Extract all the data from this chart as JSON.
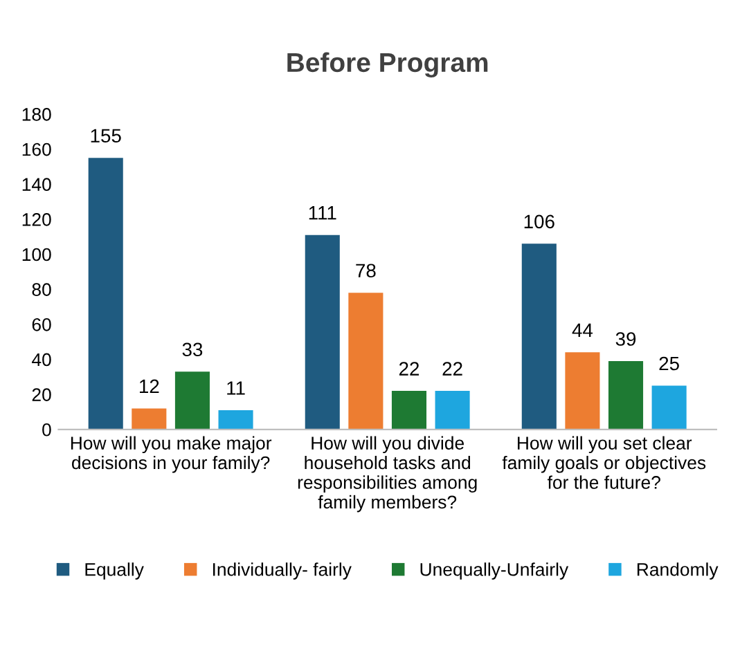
{
  "chart_data": {
    "type": "bar",
    "title": "Before Program",
    "categories": [
      "How will you make major\ndecisions in your family?",
      "How will you divide\nhousehold tasks and\nresponsibilities among\nfamily members?",
      "How will you set clear\nfamily goals or objectives\nfor the future?"
    ],
    "series": [
      {
        "name": "Equally",
        "color": "#1f5b80",
        "values": [
          155,
          111,
          106
        ]
      },
      {
        "name": "Individually- fairly",
        "color": "#ed7d31",
        "values": [
          12,
          78,
          44
        ]
      },
      {
        "name": "Unequally-Unfairly",
        "color": "#1e7a33",
        "values": [
          33,
          22,
          39
        ]
      },
      {
        "name": "Randomly",
        "color": "#1ea6df",
        "values": [
          11,
          22,
          25
        ]
      }
    ],
    "ylim": [
      0,
      180
    ],
    "yticks": [
      0,
      20,
      40,
      60,
      80,
      100,
      120,
      140,
      160,
      180
    ],
    "data_labels": true,
    "legend": "bottom",
    "grid": false
  }
}
